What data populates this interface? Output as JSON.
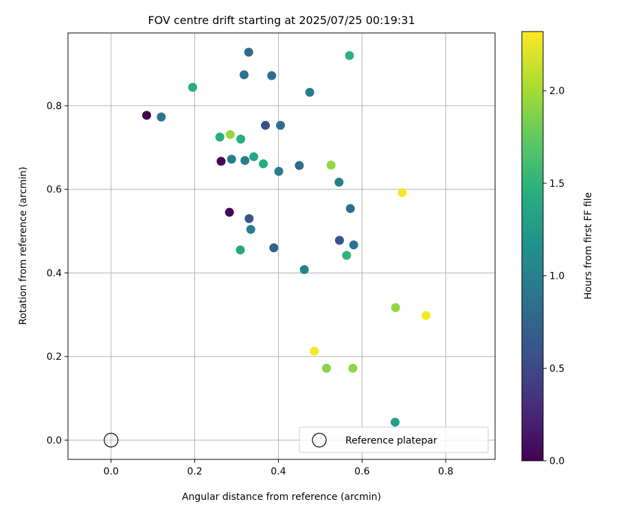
{
  "chart_data": {
    "type": "scatter",
    "title": "FOV centre drift starting at 2025/07/25 00:19:31",
    "xlabel": "Angular distance from reference (arcmin)",
    "ylabel": "Rotation from reference (arcmin)",
    "xlim": [
      -0.103,
      0.918
    ],
    "ylim": [
      -0.046,
      0.974
    ],
    "x_ticks": [
      {
        "value": 0.0,
        "label": "0.0"
      },
      {
        "value": 0.2,
        "label": "0.2"
      },
      {
        "value": 0.4,
        "label": "0.4"
      },
      {
        "value": 0.6,
        "label": "0.6"
      },
      {
        "value": 0.8,
        "label": "0.8"
      }
    ],
    "y_ticks": [
      {
        "value": 0.0,
        "label": "0.0"
      },
      {
        "value": 0.2,
        "label": "0.2"
      },
      {
        "value": 0.4,
        "label": "0.4"
      },
      {
        "value": 0.6,
        "label": "0.6"
      },
      {
        "value": 0.8,
        "label": "0.8"
      }
    ],
    "grid": true,
    "colormap": "viridis",
    "colorbar": {
      "label": "Hours from first FF file",
      "range": [
        0.0,
        2.32
      ],
      "ticks": [
        {
          "value": 0.0,
          "label": "0.0"
        },
        {
          "value": 0.5,
          "label": "0.5"
        },
        {
          "value": 1.0,
          "label": "1.0"
        },
        {
          "value": 1.5,
          "label": "1.5"
        },
        {
          "value": 2.0,
          "label": "2.0"
        }
      ]
    },
    "legend": {
      "placement": "lower-right",
      "entries": [
        "Reference platepar"
      ]
    },
    "reference_point": {
      "x": 0.0,
      "y": 0.0,
      "name": "Reference platepar"
    },
    "points": [
      {
        "x": 0.085,
        "y": 0.777,
        "c": 0.0
      },
      {
        "x": 0.263,
        "y": 0.667,
        "c": 0.02
      },
      {
        "x": 0.283,
        "y": 0.545,
        "c": 0.03
      },
      {
        "x": 0.33,
        "y": 0.53,
        "c": 0.6
      },
      {
        "x": 0.369,
        "y": 0.753,
        "c": 0.55
      },
      {
        "x": 0.546,
        "y": 0.478,
        "c": 0.6
      },
      {
        "x": 0.389,
        "y": 0.46,
        "c": 0.72
      },
      {
        "x": 0.45,
        "y": 0.657,
        "c": 0.8
      },
      {
        "x": 0.329,
        "y": 0.928,
        "c": 0.82
      },
      {
        "x": 0.384,
        "y": 0.872,
        "c": 0.85
      },
      {
        "x": 0.318,
        "y": 0.874,
        "c": 0.88
      },
      {
        "x": 0.405,
        "y": 0.753,
        "c": 0.85
      },
      {
        "x": 0.572,
        "y": 0.554,
        "c": 0.85
      },
      {
        "x": 0.58,
        "y": 0.467,
        "c": 0.9
      },
      {
        "x": 0.475,
        "y": 0.832,
        "c": 0.95
      },
      {
        "x": 0.12,
        "y": 0.773,
        "c": 0.9
      },
      {
        "x": 0.288,
        "y": 0.672,
        "c": 0.95
      },
      {
        "x": 0.32,
        "y": 0.669,
        "c": 0.95
      },
      {
        "x": 0.334,
        "y": 0.504,
        "c": 0.98
      },
      {
        "x": 0.401,
        "y": 0.643,
        "c": 0.98
      },
      {
        "x": 0.545,
        "y": 0.617,
        "c": 1.0
      },
      {
        "x": 0.462,
        "y": 0.408,
        "c": 1.02
      },
      {
        "x": 0.341,
        "y": 0.678,
        "c": 1.35
      },
      {
        "x": 0.364,
        "y": 0.661,
        "c": 1.42
      },
      {
        "x": 0.31,
        "y": 0.72,
        "c": 1.45
      },
      {
        "x": 0.26,
        "y": 0.725,
        "c": 1.43
      },
      {
        "x": 0.309,
        "y": 0.455,
        "c": 1.38
      },
      {
        "x": 0.563,
        "y": 0.442,
        "c": 1.5
      },
      {
        "x": 0.57,
        "y": 0.92,
        "c": 1.48
      },
      {
        "x": 0.195,
        "y": 0.844,
        "c": 1.45
      },
      {
        "x": 0.679,
        "y": 0.043,
        "c": 1.3
      },
      {
        "x": 0.285,
        "y": 0.731,
        "c": 1.95
      },
      {
        "x": 0.526,
        "y": 0.658,
        "c": 1.95
      },
      {
        "x": 0.68,
        "y": 0.317,
        "c": 1.95
      },
      {
        "x": 0.515,
        "y": 0.172,
        "c": 1.9
      },
      {
        "x": 0.578,
        "y": 0.172,
        "c": 1.92
      },
      {
        "x": 0.486,
        "y": 0.213,
        "c": 2.3
      },
      {
        "x": 0.696,
        "y": 0.592,
        "c": 2.3
      },
      {
        "x": 0.753,
        "y": 0.298,
        "c": 2.3
      }
    ]
  }
}
